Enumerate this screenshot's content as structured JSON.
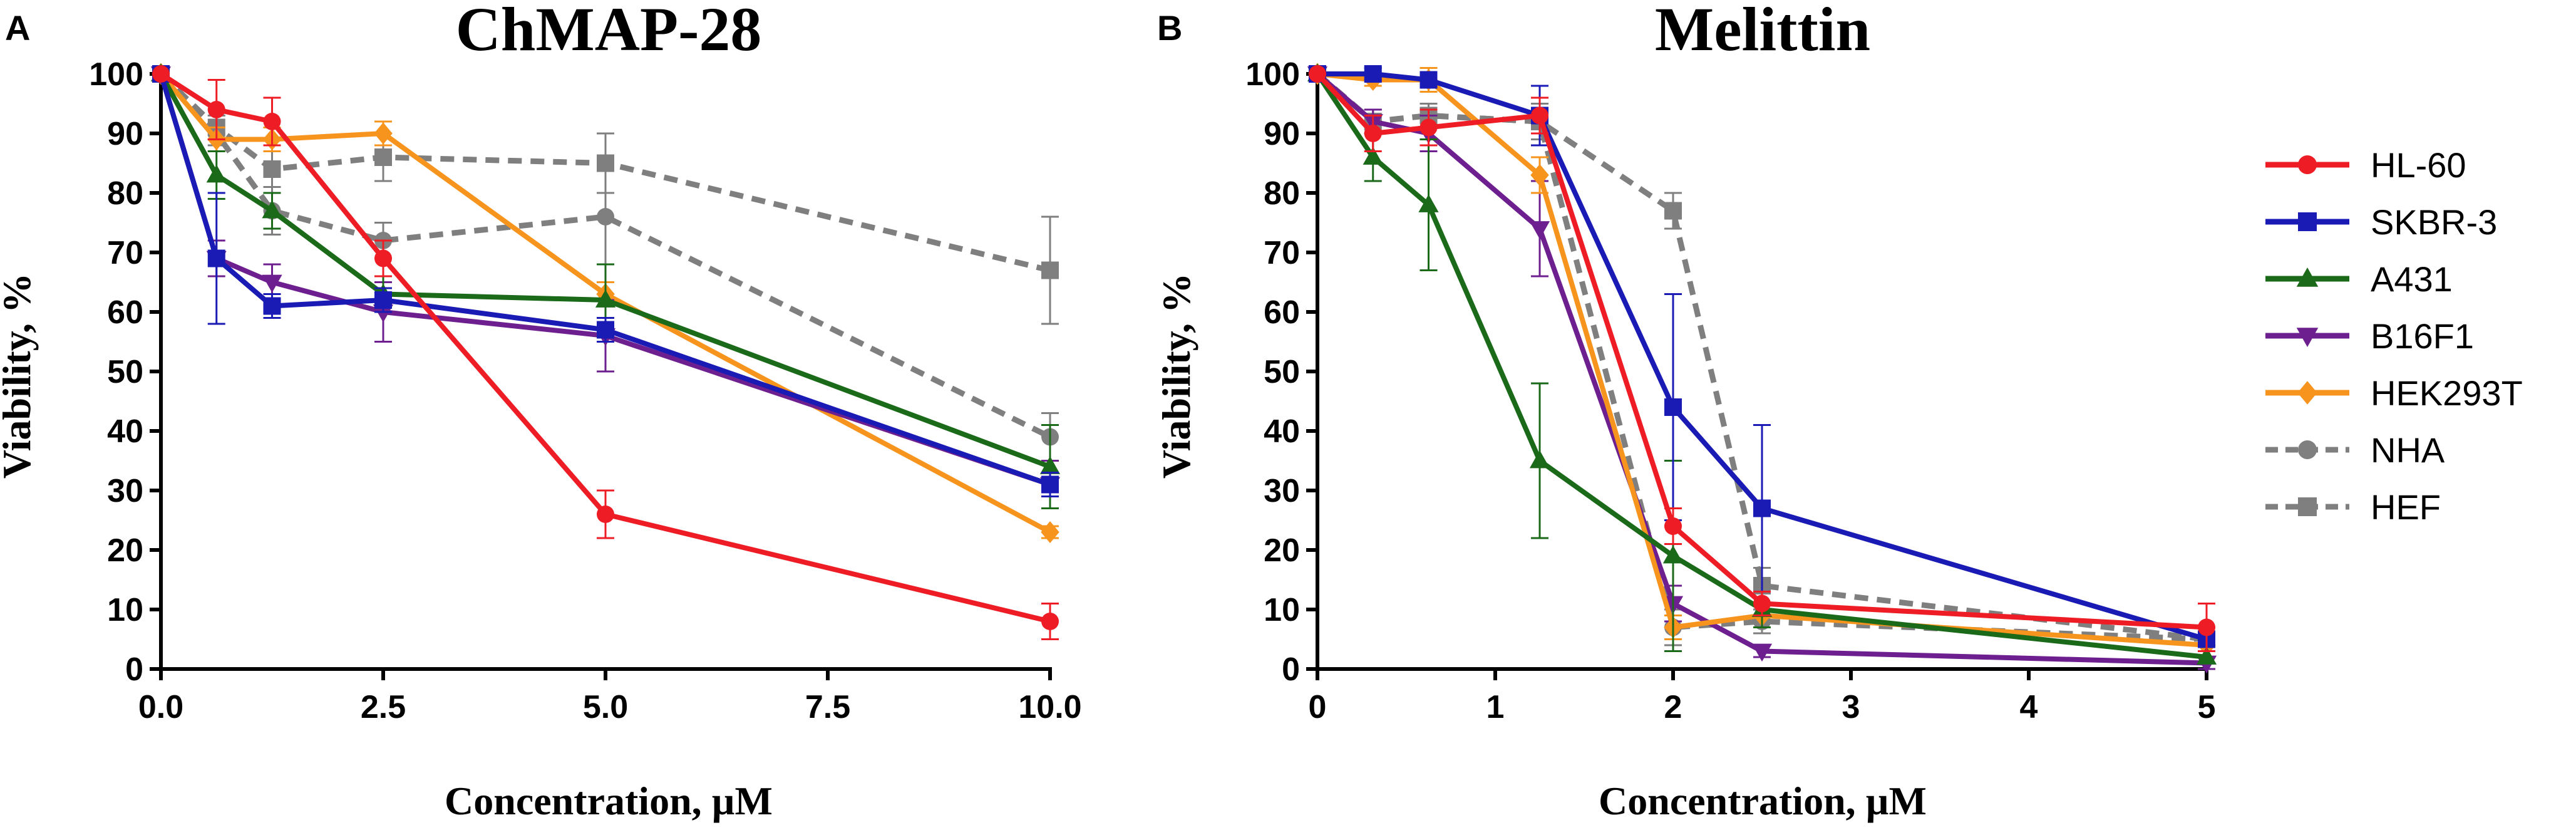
{
  "colors": {
    "HL-60": "#ee1c25",
    "SKBR-3": "#1a1ab4",
    "A431": "#1a6a1a",
    "B16F1": "#6d1f8f",
    "HEK293T": "#f7941d",
    "NHA": "#7f7f7f",
    "HEF": "#7f7f7f"
  },
  "legend": {
    "entries": [
      {
        "name": "HL-60",
        "marker": "circle",
        "dashed": false
      },
      {
        "name": "SKBR-3",
        "marker": "square",
        "dashed": false
      },
      {
        "name": "A431",
        "marker": "triangle-up",
        "dashed": false
      },
      {
        "name": "B16F1",
        "marker": "triangle-down",
        "dashed": false
      },
      {
        "name": "HEK293T",
        "marker": "diamond",
        "dashed": false
      },
      {
        "name": "NHA",
        "marker": "circle",
        "dashed": true
      },
      {
        "name": "HEF",
        "marker": "square",
        "dashed": true
      }
    ]
  },
  "chart_data": [
    {
      "panel": "A",
      "type": "line",
      "title": "ChMAP-28",
      "xlabel": "Concentration, µM",
      "ylabel": "Viability, %",
      "xlim": [
        0,
        10
      ],
      "ylim": [
        0,
        100
      ],
      "xticks": [
        0,
        2.5,
        5,
        7.5,
        10
      ],
      "xtick_labels": [
        "0.0",
        "2.5",
        "5.0",
        "7.5",
        "10.0"
      ],
      "yticks": [
        0,
        10,
        20,
        30,
        40,
        50,
        60,
        70,
        80,
        90,
        100
      ],
      "ytick_labels": [
        "0",
        "10",
        "20",
        "30",
        "40",
        "50",
        "60",
        "70",
        "80",
        "90",
        "100"
      ],
      "series": [
        {
          "name": "NHA",
          "x": [
            0,
            0.625,
            1.25,
            2.5,
            5,
            10
          ],
          "y": [
            100,
            90,
            77,
            72,
            76,
            39
          ],
          "err": [
            0,
            3,
            4,
            3,
            14,
            4
          ]
        },
        {
          "name": "HEF",
          "x": [
            0,
            0.625,
            1.25,
            2.5,
            5,
            10
          ],
          "y": [
            100,
            91,
            84,
            86,
            85,
            67
          ],
          "err": [
            0,
            3,
            4,
            4,
            5,
            9
          ]
        },
        {
          "name": "HEK293T",
          "x": [
            0,
            0.625,
            1.25,
            2.5,
            5,
            10
          ],
          "y": [
            100,
            89,
            89,
            90,
            63,
            23
          ],
          "err": [
            0,
            2,
            2,
            2,
            2,
            1
          ]
        },
        {
          "name": "B16F1",
          "x": [
            0,
            0.625,
            1.25,
            2.5,
            5,
            10
          ],
          "y": [
            100,
            69,
            65,
            60,
            56,
            31
          ],
          "err": [
            0,
            3,
            3,
            5,
            6,
            4
          ]
        },
        {
          "name": "A431",
          "x": [
            0,
            0.625,
            1.25,
            2.5,
            5,
            10
          ],
          "y": [
            100,
            83,
            77,
            63,
            62,
            34
          ],
          "err": [
            0,
            4,
            3,
            3,
            6,
            7
          ]
        },
        {
          "name": "SKBR-3",
          "x": [
            0,
            0.625,
            1.25,
            2.5,
            5,
            10
          ],
          "y": [
            100,
            69,
            61,
            62,
            57,
            31
          ],
          "err": [
            0,
            11,
            2,
            2,
            2,
            2
          ]
        },
        {
          "name": "HL-60",
          "x": [
            0,
            0.625,
            1.25,
            2.5,
            5,
            10
          ],
          "y": [
            100,
            94,
            92,
            69,
            26,
            8
          ],
          "err": [
            0,
            5,
            4,
            3,
            4,
            3
          ]
        }
      ]
    },
    {
      "panel": "B",
      "type": "line",
      "title": "Melittin",
      "xlabel": "Concentration, µM",
      "ylabel": "Viability, %",
      "xlim": [
        0,
        5
      ],
      "ylim": [
        0,
        100
      ],
      "xticks": [
        0,
        1,
        2,
        3,
        4,
        5
      ],
      "xtick_labels": [
        "0",
        "1",
        "2",
        "3",
        "4",
        "5"
      ],
      "yticks": [
        0,
        10,
        20,
        30,
        40,
        50,
        60,
        70,
        80,
        90,
        100
      ],
      "ytick_labels": [
        "0",
        "10",
        "20",
        "30",
        "40",
        "50",
        "60",
        "70",
        "80",
        "90",
        "100"
      ],
      "series": [
        {
          "name": "NHA",
          "x": [
            0,
            0.3125,
            0.625,
            1.25,
            2,
            2.5,
            5
          ],
          "y": [
            100,
            92,
            93,
            92,
            7,
            8,
            5
          ],
          "err": [
            0,
            2,
            2,
            3,
            3,
            2,
            2
          ]
        },
        {
          "name": "HEF",
          "x": [
            0,
            0.3125,
            0.625,
            1.25,
            2,
            2.5,
            5
          ],
          "y": [
            100,
            92,
            93,
            92,
            77,
            14,
            5
          ],
          "err": [
            0,
            2,
            2,
            3,
            3,
            3,
            2
          ]
        },
        {
          "name": "B16F1",
          "x": [
            0,
            0.3125,
            0.625,
            1.25,
            2,
            2.5,
            5
          ],
          "y": [
            100,
            92,
            90,
            74,
            11,
            3,
            1
          ],
          "err": [
            0,
            2,
            3,
            8,
            3,
            1,
            1
          ]
        },
        {
          "name": "HEK293T",
          "x": [
            0,
            0.3125,
            0.625,
            1.25,
            2,
            2.5,
            5
          ],
          "y": [
            100,
            99,
            99,
            83,
            7,
            9,
            4
          ],
          "err": [
            0,
            1,
            2,
            3,
            2,
            2,
            1
          ]
        },
        {
          "name": "A431",
          "x": [
            0,
            0.3125,
            0.625,
            1.25,
            2,
            2.5,
            5
          ],
          "y": [
            100,
            86,
            78,
            35,
            19,
            10,
            2
          ],
          "err": [
            0,
            4,
            11,
            13,
            16,
            3,
            1
          ]
        },
        {
          "name": "SKBR-3",
          "x": [
            0,
            0.3125,
            0.625,
            1.25,
            2,
            2.5,
            5
          ],
          "y": [
            100,
            100,
            99,
            93,
            44,
            27,
            5
          ],
          "err": [
            0,
            1,
            1,
            5,
            19,
            14,
            2
          ]
        },
        {
          "name": "HL-60",
          "x": [
            0,
            0.3125,
            0.625,
            1.25,
            2,
            2.5,
            5
          ],
          "y": [
            100,
            90,
            91,
            93,
            24,
            11,
            7
          ],
          "err": [
            0,
            3,
            3,
            3,
            3,
            2,
            4
          ]
        }
      ]
    }
  ]
}
